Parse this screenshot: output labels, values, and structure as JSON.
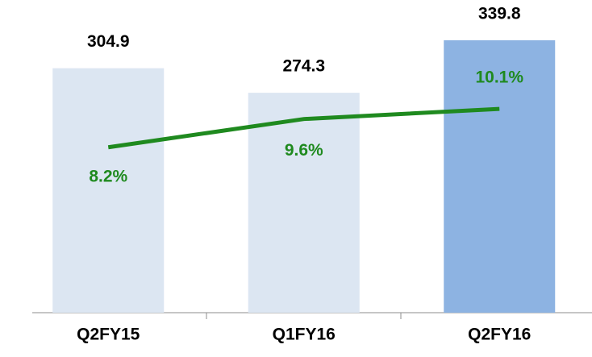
{
  "chart_data": {
    "type": "bar",
    "categories": [
      "Q2FY15",
      "Q1FY16",
      "Q2FY16"
    ],
    "ylim": [
      0,
      390
    ],
    "y2lim": [
      0,
      15.5
    ],
    "series": [
      {
        "type": "bar",
        "values": [
          304.9,
          274.3,
          339.8
        ],
        "colors": [
          "#dce6f2",
          "#dce6f2",
          "#8db3e2"
        ]
      },
      {
        "type": "line",
        "axis": "y2",
        "values": [
          8.2,
          9.6,
          10.1
        ],
        "value_labels": [
          "8.2%",
          "9.6%",
          "10.1%"
        ],
        "color": "#1f8a1f"
      }
    ]
  }
}
